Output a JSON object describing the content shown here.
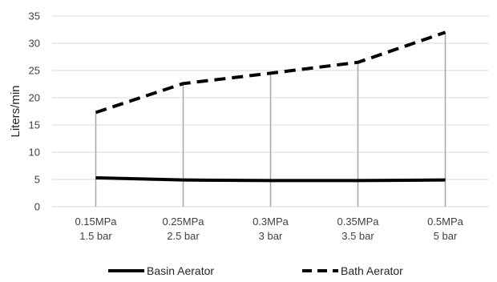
{
  "chart_data": {
    "type": "line",
    "title": "",
    "xlabel": "",
    "ylabel": "Liters/min",
    "ylim": [
      0,
      35
    ],
    "yticks": [
      0,
      5,
      10,
      15,
      20,
      25,
      30,
      35
    ],
    "grid": "horizontal",
    "drop_lines": true,
    "legend_position": "bottom",
    "categories": [
      [
        "0.15MPa",
        "1.5 bar"
      ],
      [
        "0.25MPa",
        "2.5 bar"
      ],
      [
        "0.3MPa",
        "3 bar"
      ],
      [
        "0.35MPa",
        "3.5 bar"
      ],
      [
        "0.5MPa",
        "5 bar"
      ]
    ],
    "series": [
      {
        "name": "Basin Aerator",
        "values": [
          5.3,
          4.9,
          4.8,
          4.8,
          4.9
        ],
        "style": "solid",
        "color": "#000000"
      },
      {
        "name": "Bath Aerator",
        "values": [
          17.3,
          22.6,
          24.5,
          26.5,
          32.0
        ],
        "style": "dashed",
        "color": "#000000"
      }
    ]
  },
  "colors": {
    "grid": "#d9d9d9",
    "drop_line": "#a6a6a6",
    "text": "#404040"
  }
}
